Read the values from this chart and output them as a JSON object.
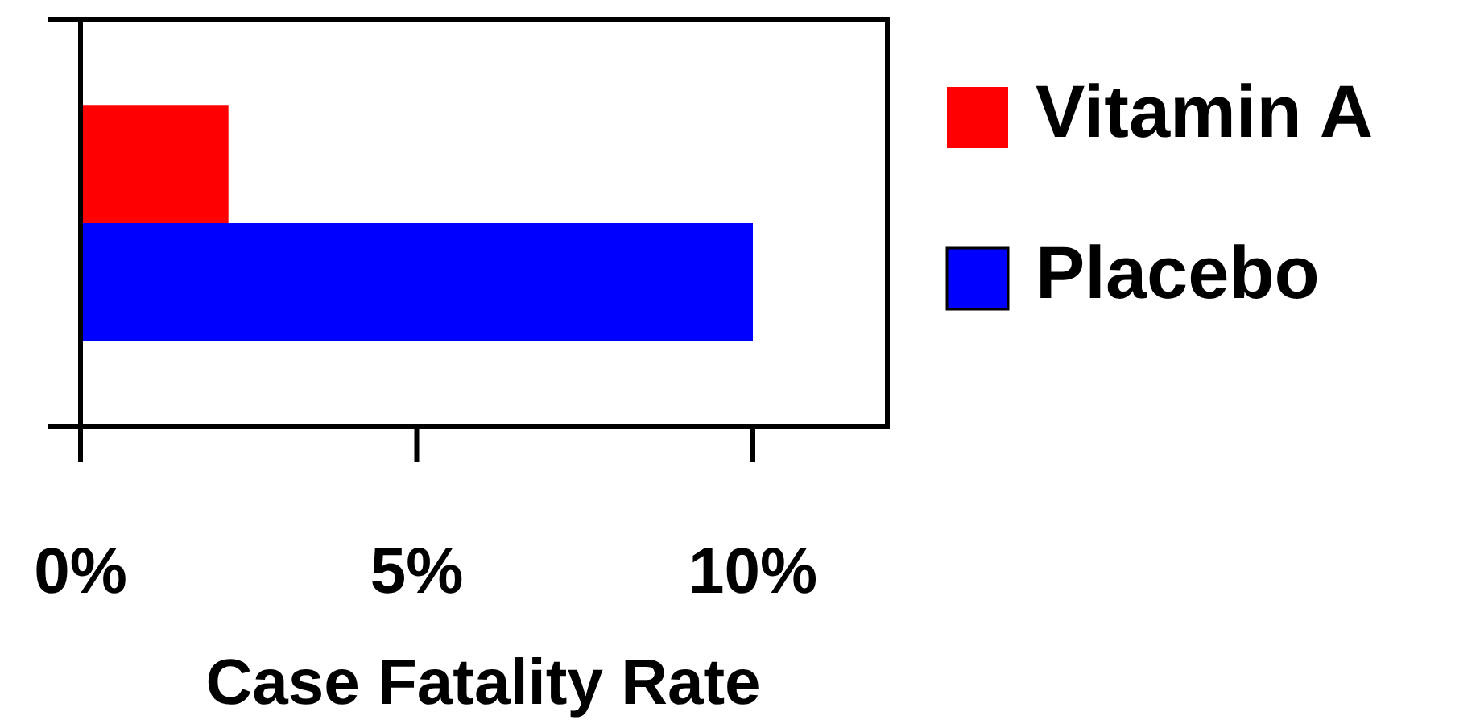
{
  "chart_data": {
    "type": "bar",
    "orientation": "horizontal",
    "categories": [
      null
    ],
    "series": [
      {
        "name": "Vitamin A",
        "color": "#ff0000",
        "values": [
          2.2
        ]
      },
      {
        "name": "Placebo",
        "color": "#0000ff",
        "values": [
          10
        ]
      }
    ],
    "xlabel": "Case Fatality Rate",
    "xlim": [
      0,
      12
    ],
    "xticks": [
      {
        "value": 0,
        "label": "0%"
      },
      {
        "value": 5,
        "label": "5%"
      },
      {
        "value": 10,
        "label": "10%"
      }
    ],
    "grid": false,
    "legend": "right"
  }
}
